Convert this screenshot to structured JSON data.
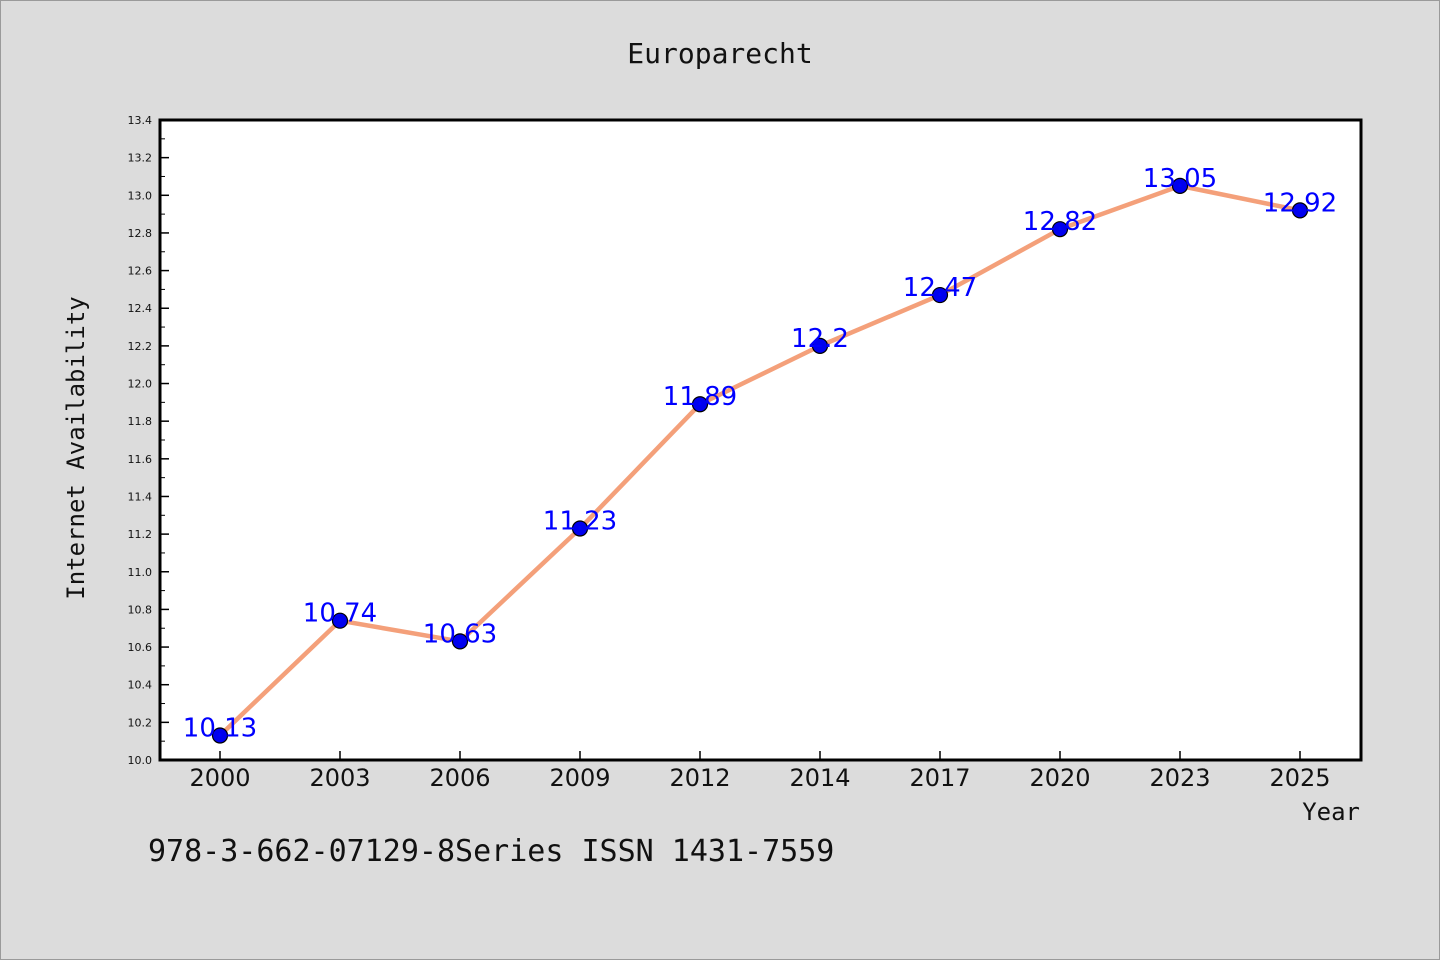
{
  "chart_data": {
    "type": "line",
    "title": "Europarecht",
    "xlabel": "Year",
    "ylabel": "Internet Availability",
    "categories": [
      "2000",
      "2003",
      "2006",
      "2009",
      "2012",
      "2014",
      "2017",
      "2020",
      "2023",
      "2025"
    ],
    "values": [
      10.13,
      10.74,
      10.63,
      11.23,
      11.89,
      12.2,
      12.47,
      12.82,
      13.05,
      12.92
    ],
    "data_labels": [
      "10.13",
      "10.74",
      "10.63",
      "11.23",
      "11.89",
      "12.2",
      "12.47",
      "12.82",
      "13.05",
      "12.92"
    ],
    "ylim": [
      10.0,
      13.4
    ],
    "yticks": [
      "10.0",
      "10.2",
      "10.4",
      "10.6",
      "10.8",
      "11.0",
      "11.2",
      "11.4",
      "11.6",
      "11.8",
      "12.0",
      "12.2",
      "12.4",
      "12.6",
      "12.8",
      "13.0",
      "13.2",
      "13.4"
    ],
    "grid": false,
    "line_color": "#f4a07a",
    "marker_color": "#0000ee",
    "label_color": "#0000ff"
  },
  "footer": "978-3-662-07129-8Series ISSN 1431-7559"
}
